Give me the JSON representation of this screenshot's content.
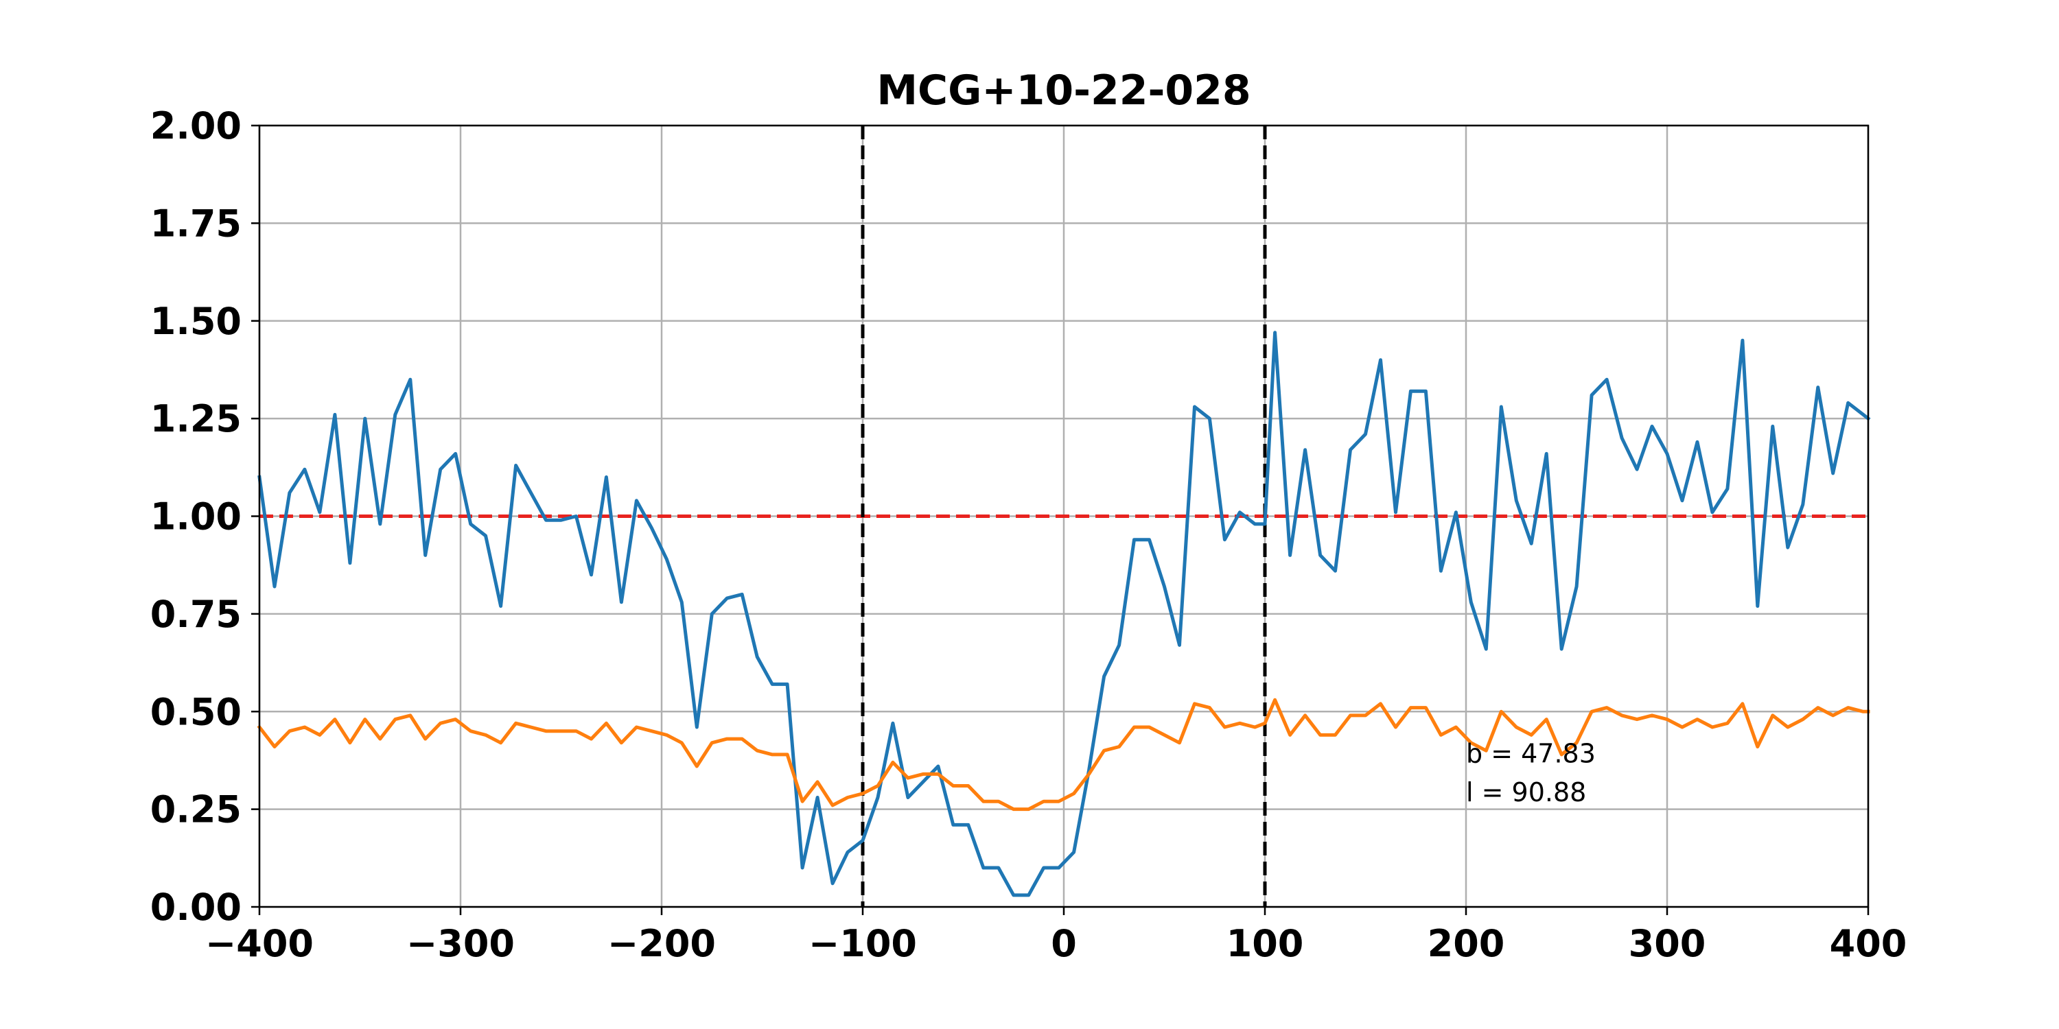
{
  "chart_data": {
    "type": "line",
    "title": "MCG+10-22-028",
    "xlabel": "",
    "ylabel": "",
    "xlim": [
      -400,
      400
    ],
    "ylim": [
      0,
      2
    ],
    "grid": true,
    "x_ticks": [
      -400,
      -300,
      -200,
      -100,
      0,
      100,
      200,
      300,
      400
    ],
    "x_tick_labels": [
      "−400",
      "−300",
      "−200",
      "−100",
      "0",
      "100",
      "200",
      "300",
      "400"
    ],
    "y_ticks": [
      0,
      0.25,
      0.5,
      0.75,
      1.0,
      1.25,
      1.5,
      1.75,
      2.0
    ],
    "y_tick_labels": [
      "0.00",
      "0.25",
      "0.50",
      "0.75",
      "1.00",
      "1.25",
      "1.50",
      "1.75",
      "2.00"
    ],
    "reference_lines": [
      {
        "orientation": "horizontal",
        "value": 1.0,
        "color": "#e8231f",
        "style": "dashed"
      },
      {
        "orientation": "vertical",
        "value": -100,
        "color": "#000000",
        "style": "dashed"
      },
      {
        "orientation": "vertical",
        "value": 100,
        "color": "#000000",
        "style": "dashed"
      }
    ],
    "annotations": [
      {
        "text": "b = 47.83",
        "x": 200,
        "y": 0.37
      },
      {
        "text": "l = 90.88",
        "x": 200,
        "y": 0.27
      }
    ],
    "series": [
      {
        "color": "#1f77b4",
        "x": [
          -400,
          -392.5,
          -385,
          -377.5,
          -370,
          -362.5,
          -355,
          -347.5,
          -340,
          -332.5,
          -325,
          -317.5,
          -310,
          -302.5,
          -295,
          -287.5,
          -280,
          -272.5,
          -265,
          -257.5,
          -250,
          -242.5,
          -235,
          -227.5,
          -220,
          -212.5,
          -205,
          -197.5,
          -190,
          -182.5,
          -175,
          -167.5,
          -160,
          -152.5,
          -145,
          -137.5,
          -130,
          -122.5,
          -115,
          -107.5,
          -100,
          -92.5,
          -85,
          -77.5,
          -70,
          -62.5,
          -55,
          -47.5,
          -40,
          -32.5,
          -25,
          -17.5,
          -10,
          -2.5,
          5,
          12.5,
          20,
          27.5,
          35,
          42.5,
          50,
          57.5,
          65,
          72.5,
          80,
          87.5,
          95,
          100,
          105,
          112.5,
          120,
          127.5,
          135,
          142.5,
          150,
          157.5,
          165,
          172.5,
          180,
          187.5,
          195,
          202.5,
          210,
          217.5,
          225,
          232.5,
          240,
          247.5,
          255,
          262.5,
          270,
          277.5,
          285,
          292.5,
          300,
          307.5,
          315,
          322.5,
          330,
          337.5,
          345,
          352.5,
          360,
          367.5,
          375,
          382.5,
          390,
          397.5,
          400
        ],
        "y": [
          1.1,
          0.82,
          1.06,
          1.12,
          1.01,
          1.26,
          0.88,
          1.25,
          0.98,
          1.26,
          1.35,
          0.9,
          1.12,
          1.16,
          0.98,
          0.95,
          0.77,
          1.13,
          1.06,
          0.99,
          0.99,
          1.0,
          0.85,
          1.1,
          0.78,
          1.04,
          0.97,
          0.89,
          0.78,
          0.46,
          0.75,
          0.79,
          0.8,
          0.64,
          0.57,
          0.57,
          0.1,
          0.28,
          0.06,
          0.14,
          0.17,
          0.28,
          0.47,
          0.28,
          0.32,
          0.36,
          0.21,
          0.21,
          0.1,
          0.1,
          0.03,
          0.03,
          0.1,
          0.1,
          0.14,
          0.35,
          0.59,
          0.67,
          0.94,
          0.94,
          0.82,
          0.67,
          1.28,
          1.25,
          0.94,
          1.01,
          0.98,
          0.98,
          1.47,
          0.9,
          1.17,
          0.9,
          0.86,
          1.17,
          1.21,
          1.4,
          1.01,
          1.32,
          1.32,
          0.86,
          1.01,
          0.78,
          0.66,
          1.28,
          1.04,
          0.93,
          1.16,
          0.66,
          0.82,
          1.31,
          1.35,
          1.2,
          1.12,
          1.23,
          1.16,
          1.04,
          1.19,
          1.01,
          1.07,
          1.45,
          0.77,
          1.23,
          0.92,
          1.03,
          1.33,
          1.11,
          1.29,
          1.26,
          1.25
        ]
      },
      {
        "color": "#ff7f0e",
        "x": [
          -400,
          -392.5,
          -385,
          -377.5,
          -370,
          -362.5,
          -355,
          -347.5,
          -340,
          -332.5,
          -325,
          -317.5,
          -310,
          -302.5,
          -295,
          -287.5,
          -280,
          -272.5,
          -265,
          -257.5,
          -250,
          -242.5,
          -235,
          -227.5,
          -220,
          -212.5,
          -205,
          -197.5,
          -190,
          -182.5,
          -175,
          -167.5,
          -160,
          -152.5,
          -145,
          -137.5,
          -130,
          -122.5,
          -115,
          -107.5,
          -100,
          -92.5,
          -85,
          -77.5,
          -70,
          -62.5,
          -55,
          -47.5,
          -40,
          -32.5,
          -25,
          -17.5,
          -10,
          -2.5,
          5,
          12.5,
          20,
          27.5,
          35,
          42.5,
          50,
          57.5,
          65,
          72.5,
          80,
          87.5,
          95,
          100,
          105,
          112.5,
          120,
          127.5,
          135,
          142.5,
          150,
          157.5,
          165,
          172.5,
          180,
          187.5,
          195,
          202.5,
          210,
          217.5,
          225,
          232.5,
          240,
          247.5,
          255,
          262.5,
          270,
          277.5,
          285,
          292.5,
          300,
          307.5,
          315,
          322.5,
          330,
          337.5,
          345,
          352.5,
          360,
          367.5,
          375,
          382.5,
          390,
          397.5,
          400
        ],
        "y": [
          0.46,
          0.41,
          0.45,
          0.46,
          0.44,
          0.48,
          0.42,
          0.48,
          0.43,
          0.48,
          0.49,
          0.43,
          0.47,
          0.48,
          0.45,
          0.44,
          0.42,
          0.47,
          0.46,
          0.45,
          0.45,
          0.45,
          0.43,
          0.47,
          0.42,
          0.46,
          0.45,
          0.44,
          0.42,
          0.36,
          0.42,
          0.43,
          0.43,
          0.4,
          0.39,
          0.39,
          0.27,
          0.32,
          0.26,
          0.28,
          0.29,
          0.31,
          0.37,
          0.33,
          0.34,
          0.34,
          0.31,
          0.31,
          0.27,
          0.27,
          0.25,
          0.25,
          0.27,
          0.27,
          0.29,
          0.34,
          0.4,
          0.41,
          0.46,
          0.46,
          0.44,
          0.42,
          0.52,
          0.51,
          0.46,
          0.47,
          0.46,
          0.47,
          0.53,
          0.44,
          0.49,
          0.44,
          0.44,
          0.49,
          0.49,
          0.52,
          0.46,
          0.51,
          0.51,
          0.44,
          0.46,
          0.42,
          0.4,
          0.5,
          0.46,
          0.44,
          0.48,
          0.39,
          0.42,
          0.5,
          0.51,
          0.49,
          0.48,
          0.49,
          0.48,
          0.46,
          0.48,
          0.46,
          0.47,
          0.52,
          0.41,
          0.49,
          0.46,
          0.48,
          0.51,
          0.49,
          0.51,
          0.5,
          0.5
        ]
      }
    ]
  }
}
